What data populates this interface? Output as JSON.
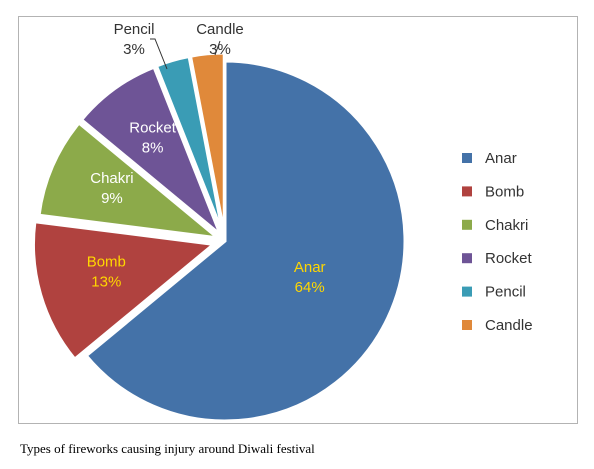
{
  "chart_data": {
    "type": "pie",
    "slices": [
      {
        "name": "Anar",
        "value": 64,
        "label": "64%",
        "color": "#4472A8",
        "label_color": "#FFD700"
      },
      {
        "name": "Bomb",
        "value": 13,
        "label": "13%",
        "color": "#B0423F",
        "label_color": "#FFD700"
      },
      {
        "name": "Chakri",
        "value": 9,
        "label": "9%",
        "color": "#8CAA4A",
        "label_color": "#FFFFFF"
      },
      {
        "name": "Rocket",
        "value": 8,
        "label": "8%",
        "color": "#6E5496",
        "label_color": "#FFFFFF"
      },
      {
        "name": "Pencil",
        "value": 3,
        "label": "3%",
        "color": "#3A9CB5",
        "label_color": "#333333"
      },
      {
        "name": "Candle",
        "value": 3,
        "label": "3%",
        "color": "#E0893A",
        "label_color": "#333333"
      }
    ],
    "legend_position": "right",
    "exploded": true
  },
  "caption": "Types of fireworks causing injury around Diwali festival"
}
